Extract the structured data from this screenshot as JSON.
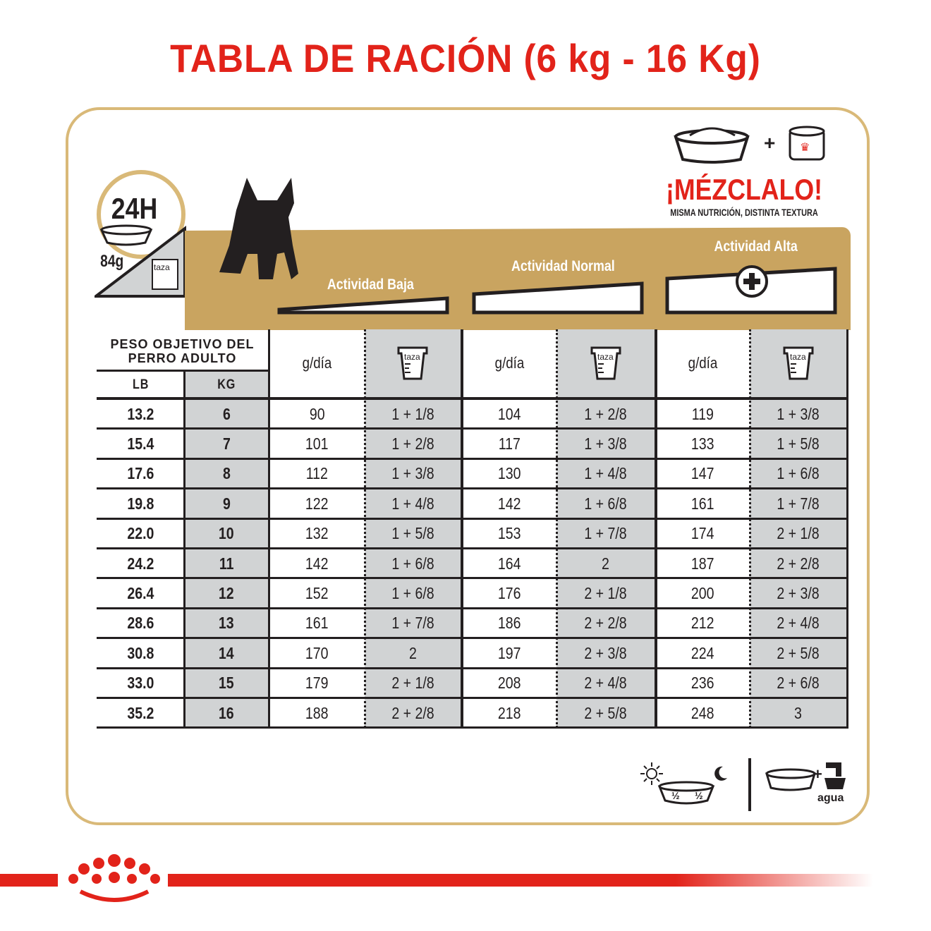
{
  "title": "TABLA DE RACIÓN (6 kg - 16 Kg)",
  "colors": {
    "brand_red": "#e2231a",
    "gold": "#c9a460",
    "gray": "#d1d3d4"
  },
  "info": {
    "hours": "24H",
    "grams": "84g",
    "cup_label": "taza"
  },
  "mix": {
    "title": "¡MÉZCLALO!",
    "subtitle": "MISMA NUTRICIÓN, DISTINTA TEXTURA",
    "plus": "+"
  },
  "activity": {
    "low": "Actividad Baja",
    "normal": "Actividad Normal",
    "high": "Actividad Alta"
  },
  "table": {
    "weight_header": "PESO OBJETIVO DEL PERRO ADULTO",
    "lb": "LB",
    "kg": "KG",
    "gday": "g/día",
    "cup": "taza",
    "rows": [
      [
        "13.2",
        "6",
        "90",
        "1 + 1/8",
        "104",
        "1 + 2/8",
        "119",
        "1 + 3/8"
      ],
      [
        "15.4",
        "7",
        "101",
        "1 + 2/8",
        "117",
        "1 + 3/8",
        "133",
        "1 + 5/8"
      ],
      [
        "17.6",
        "8",
        "112",
        "1 + 3/8",
        "130",
        "1 + 4/8",
        "147",
        "1 + 6/8"
      ],
      [
        "19.8",
        "9",
        "122",
        "1 + 4/8",
        "142",
        "1 + 6/8",
        "161",
        "1 + 7/8"
      ],
      [
        "22.0",
        "10",
        "132",
        "1 + 5/8",
        "153",
        "1 + 7/8",
        "174",
        "2 + 1/8"
      ],
      [
        "24.2",
        "11",
        "142",
        "1 + 6/8",
        "164",
        "2",
        "187",
        "2 + 2/8"
      ],
      [
        "26.4",
        "12",
        "152",
        "1 + 6/8",
        "176",
        "2 + 1/8",
        "200",
        "2 + 3/8"
      ],
      [
        "28.6",
        "13",
        "161",
        "1 + 7/8",
        "186",
        "2 + 2/8",
        "212",
        "2 + 4/8"
      ],
      [
        "30.8",
        "14",
        "170",
        "2",
        "197",
        "2 + 3/8",
        "224",
        "2 + 5/8"
      ],
      [
        "33.0",
        "15",
        "179",
        "2 + 1/8",
        "208",
        "2 + 4/8",
        "236",
        "2 + 6/8"
      ],
      [
        "35.2",
        "16",
        "188",
        "2 + 2/8",
        "218",
        "2 + 5/8",
        "248",
        "3"
      ]
    ]
  },
  "footer": {
    "half": "½",
    "water": "agua"
  },
  "icons": [
    "clock-icon",
    "bowl-icon",
    "cup-icon",
    "dog-silhouette-icon",
    "can-icon",
    "plus-circle-icon",
    "sun-icon",
    "moon-icon",
    "faucet-icon",
    "royal-canin-crown-logo"
  ]
}
